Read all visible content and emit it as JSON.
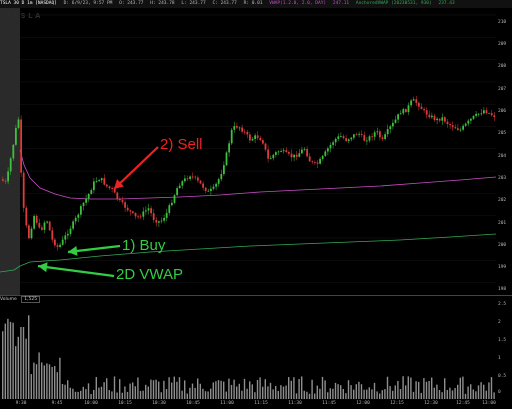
{
  "header": {
    "symbol": "TSLA 30 D 1m [NASDAQ]",
    "stats": [
      "D: 6/9/23, 9:57 PM",
      "O: 243.77",
      "H: 243.78",
      "L: 243.77",
      "C: 243.77",
      "R: 0.01"
    ],
    "vwap_label": "VWAP(1.2.0, 2.0, DAY)",
    "vwap_value": "247.11",
    "anchored_label": "AnchoredVWAP (20230531, 930)",
    "anchored_value": "237.43"
  },
  "watermark": "TESLA",
  "colors": {
    "up": "#3fbf3f",
    "down": "#e03a3a",
    "vwap": "#c94fc9",
    "anchored_vwap": "#33aa55",
    "annotation_sell": "#ee2222",
    "annotation_buy": "#33cc44"
  },
  "annotations": {
    "sell": "2) Sell",
    "buy": "1) Buy",
    "vwap2d": "2D VWAP"
  },
  "price_axis": [
    "210",
    "209",
    "208",
    "207",
    "206",
    "205",
    "204",
    "203",
    "202",
    "201",
    "200",
    "199",
    "198"
  ],
  "volume_panel": {
    "label": "Volume",
    "value": "1,525",
    "axis": [
      "2.5",
      "2",
      "1.5",
      "1",
      "0.5",
      "0"
    ]
  },
  "time_axis": [
    "9:30",
    "9:45",
    "10:00",
    "10:15",
    "10:30",
    "10:45",
    "11:00",
    "11:15",
    "11:30",
    "11:45",
    "12:00",
    "12:15",
    "12:30",
    "12:45",
    "13:00"
  ]
}
